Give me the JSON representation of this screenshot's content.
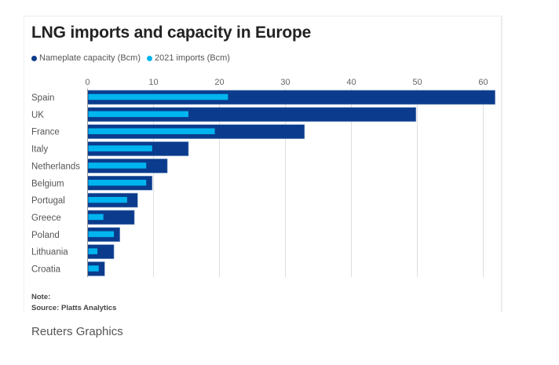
{
  "chart_data": {
    "type": "bar",
    "orientation": "horizontal",
    "title": "LNG imports and capacity in Europe",
    "xlabel": "",
    "ylabel": "",
    "xlim": [
      0,
      62
    ],
    "xticks": [
      0,
      10,
      20,
      30,
      40,
      50,
      60
    ],
    "grid": true,
    "legend_position": "top-left",
    "categories": [
      "Spain",
      "UK",
      "France",
      "Italy",
      "Netherlands",
      "Belgium",
      "Portugal",
      "Greece",
      "Poland",
      "Lithuania",
      "Croatia"
    ],
    "series": [
      {
        "name": "Nameplate capacity (Bcm)",
        "color": "#0b3b8c",
        "values": [
          61.8,
          49.8,
          32.9,
          15.3,
          12.1,
          9.8,
          7.6,
          7.1,
          4.9,
          4.0,
          2.6
        ]
      },
      {
        "name": "2021 imports (Bcm)",
        "color": "#00b5ef",
        "values": [
          21.3,
          15.3,
          19.3,
          9.8,
          8.9,
          8.9,
          6.0,
          2.4,
          4.0,
          1.5,
          1.7
        ]
      }
    ],
    "note": "Note:",
    "source": "Source: Platts Analytics"
  },
  "footer": {
    "credit": "Reuters Graphics"
  }
}
